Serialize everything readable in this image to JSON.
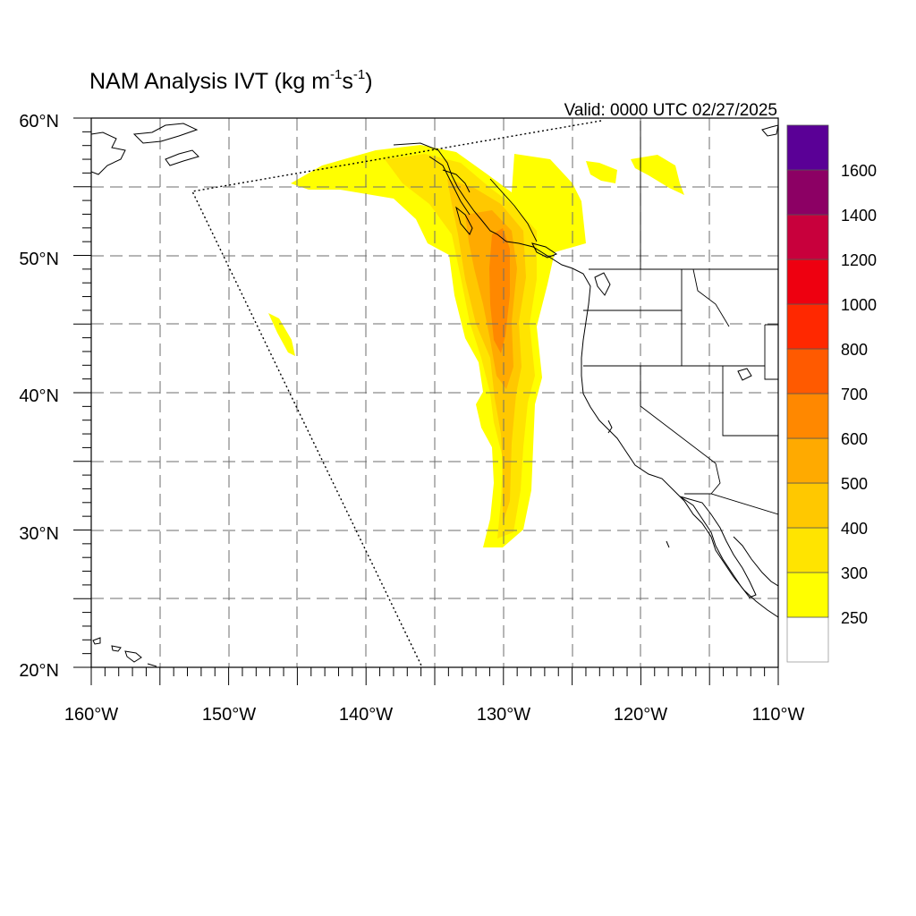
{
  "title": {
    "main": "NAM Analysis IVT (kg m",
    "sup1": "-1",
    "mid": "s",
    "sup2": "-1",
    "end": ")"
  },
  "valid": "Valid: 0000 UTC 02/27/2025",
  "chart_data": {
    "type": "heatmap",
    "projection": "lat-lon",
    "x_range": [
      -160,
      -110
    ],
    "y_range": [
      20,
      60
    ],
    "grid": true,
    "grid_step_deg": 5,
    "lon_ticks": [
      {
        "value": -160,
        "label": "160°W"
      },
      {
        "value": -150,
        "label": "150°W"
      },
      {
        "value": -140,
        "label": "140°W"
      },
      {
        "value": -130,
        "label": "130°W"
      },
      {
        "value": -120,
        "label": "120°W"
      },
      {
        "value": -110,
        "label": "110°W"
      }
    ],
    "lat_ticks": [
      {
        "value": 60,
        "label": "60°N"
      },
      {
        "value": 50,
        "label": "50°N"
      },
      {
        "value": 40,
        "label": "40°N"
      },
      {
        "value": 30,
        "label": "30°N"
      },
      {
        "value": 20,
        "label": "20°N"
      }
    ],
    "colorbar": {
      "placement": "right",
      "labels": [
        "250",
        "300",
        "400",
        "500",
        "600",
        "700",
        "800",
        "1000",
        "1200",
        "1400",
        "1600"
      ],
      "colors": [
        "#ffffff",
        "#ffff00",
        "#ffe400",
        "#ffc800",
        "#ffaa00",
        "#ff8800",
        "#ff5a00",
        "#ff2800",
        "#ee0010",
        "#c8003c",
        "#8c0064",
        "#5a0096"
      ]
    },
    "plume_core_lon": -130,
    "plume_lat_range": [
      29,
      57
    ]
  },
  "icons": [
    "coastline-outlines",
    "state-borders",
    "domain-boundary-dotted"
  ]
}
